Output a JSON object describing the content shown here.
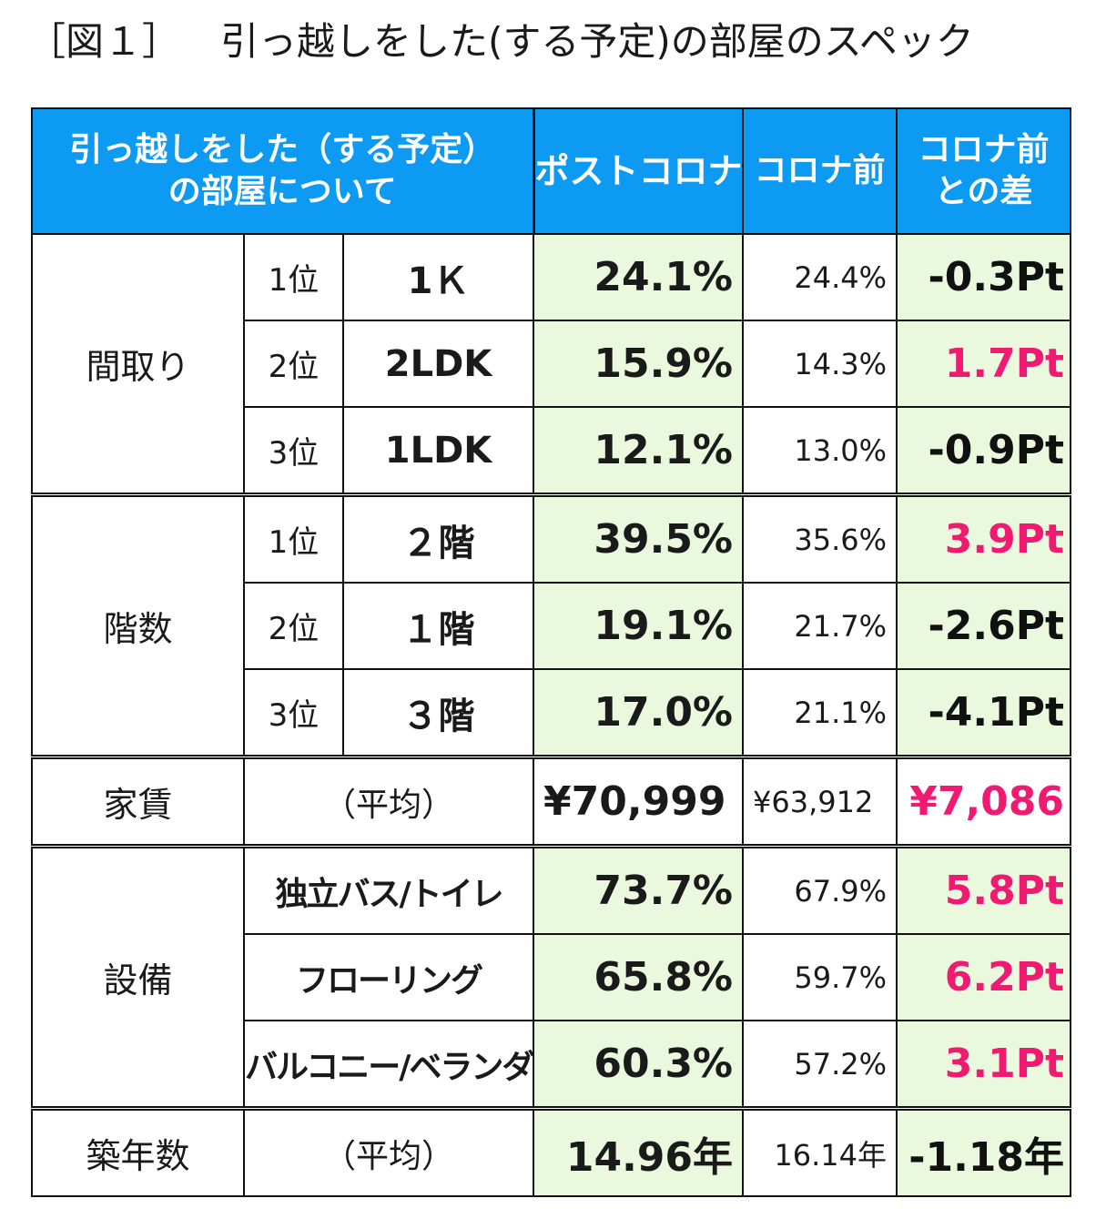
{
  "title": {
    "figure_label": "［図１］",
    "text": "引っ越しをした(する予定)の部屋のスペック"
  },
  "header": {
    "col1_line1": "引っ越しをした（する予定）",
    "col1_line2": "の部屋について",
    "post_corona": "ポストコロナ",
    "pre_corona": "コロナ前",
    "diff_line1": "コロナ前",
    "diff_line2": "との差"
  },
  "sections": {
    "madori": {
      "label": "間取り",
      "rows": [
        {
          "rank": "1位",
          "item": "1Ｋ",
          "post": "24.1%",
          "pre": "24.4%",
          "diff": "-0.3Pt"
        },
        {
          "rank": "2位",
          "item": "2LDK",
          "post": "15.9%",
          "pre": "14.3%",
          "diff": "1.7Pt"
        },
        {
          "rank": "3位",
          "item": "1LDK",
          "post": "12.1%",
          "pre": "13.0%",
          "diff": "-0.9Pt"
        }
      ]
    },
    "kaisu": {
      "label": "階数",
      "rows": [
        {
          "rank": "1位",
          "item": "２階",
          "post": "39.5%",
          "pre": "35.6%",
          "diff": "3.9Pt"
        },
        {
          "rank": "2位",
          "item": "１階",
          "post": "19.1%",
          "pre": "21.7%",
          "diff": "-2.6Pt"
        },
        {
          "rank": "3位",
          "item": "３階",
          "post": "17.0%",
          "pre": "21.1%",
          "diff": "-4.1Pt"
        }
      ]
    },
    "yachin": {
      "label": "家賃",
      "avg": "（平均）",
      "post": "¥70,999",
      "pre": "¥63,912",
      "diff": "¥7,086"
    },
    "setsubi": {
      "label": "設備",
      "rows": [
        {
          "item": "独立バス/トイレ",
          "post": "73.7%",
          "pre": "67.9%",
          "diff": "5.8Pt"
        },
        {
          "item": "フローリング",
          "post": "65.8%",
          "pre": "59.7%",
          "diff": "6.2Pt"
        },
        {
          "item": "バルコニー/ベランダ",
          "post": "60.3%",
          "pre": "57.2%",
          "diff": "3.1Pt"
        }
      ]
    },
    "chikunen": {
      "label": "築年数",
      "avg": "（平均）",
      "post": "14.96年",
      "pre": "16.14年",
      "diff": "-1.18年"
    }
  },
  "colors": {
    "header_bg": "#0d9af2",
    "highlight_bg": "#eaf9de",
    "positive_diff": "#f01a73",
    "negative_diff": "#111111"
  }
}
